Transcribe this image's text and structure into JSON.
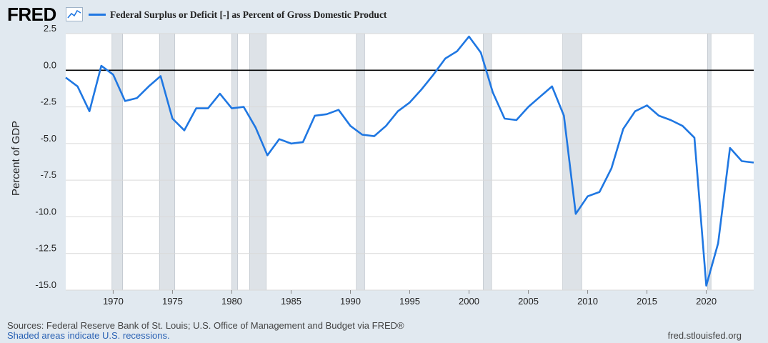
{
  "header": {
    "logo_text": "FRED",
    "logo_icon": "line-chart-icon"
  },
  "colors": {
    "series": "#1f77e2",
    "recession": "#dde2e7",
    "grid": "#d9d9d9",
    "zero_line": "#000000",
    "background": "#e1e9f0",
    "plot_background": "#ffffff"
  },
  "chart_data": {
    "type": "line",
    "title": "",
    "xlabel": "",
    "ylabel": "Percent of GDP",
    "xlim": [
      1966,
      2024
    ],
    "ylim": [
      -15.0,
      2.5
    ],
    "grid": true,
    "legend_position": "top-left",
    "y_ticks": [
      "2.5",
      "0.0",
      "-2.5",
      "-5.0",
      "-7.5",
      "-10.0",
      "-12.5",
      "-15.0"
    ],
    "x_ticks": [
      "1970",
      "1975",
      "1980",
      "1985",
      "1990",
      "1995",
      "2000",
      "2005",
      "2010",
      "2015",
      "2020"
    ],
    "recessions": [
      [
        1969.9,
        1970.8
      ],
      [
        1973.9,
        1975.2
      ],
      [
        1980.0,
        1980.5
      ],
      [
        1981.5,
        1982.9
      ],
      [
        1990.5,
        1991.2
      ],
      [
        2001.2,
        2001.9
      ],
      [
        2007.9,
        2009.5
      ],
      [
        2020.1,
        2020.4
      ]
    ],
    "series": [
      {
        "name": "Federal Surplus or Deficit [-] as Percent of Gross Domestic Product",
        "x": [
          1966,
          1967,
          1968,
          1969,
          1970,
          1971,
          1972,
          1973,
          1974,
          1975,
          1976,
          1977,
          1978,
          1979,
          1980,
          1981,
          1982,
          1983,
          1984,
          1985,
          1986,
          1987,
          1988,
          1989,
          1990,
          1991,
          1992,
          1993,
          1994,
          1995,
          1996,
          1997,
          1998,
          1999,
          2000,
          2001,
          2002,
          2003,
          2004,
          2005,
          2006,
          2007,
          2008,
          2009,
          2010,
          2011,
          2012,
          2013,
          2014,
          2015,
          2016,
          2017,
          2018,
          2019,
          2020,
          2021,
          2022,
          2023,
          2024
        ],
        "values": [
          -0.5,
          -1.1,
          -2.8,
          0.3,
          -0.3,
          -2.1,
          -1.9,
          -1.1,
          -0.4,
          -3.3,
          -4.1,
          -2.6,
          -2.6,
          -1.6,
          -2.6,
          -2.5,
          -3.9,
          -5.8,
          -4.7,
          -5.0,
          -4.9,
          -3.1,
          -3.0,
          -2.7,
          -3.8,
          -4.4,
          -4.5,
          -3.8,
          -2.8,
          -2.2,
          -1.3,
          -0.3,
          0.8,
          1.3,
          2.3,
          1.2,
          -1.5,
          -3.3,
          -3.4,
          -2.5,
          -1.8,
          -1.1,
          -3.1,
          -9.8,
          -8.6,
          -8.3,
          -6.7,
          -4.0,
          -2.8,
          -2.4,
          -3.1,
          -3.4,
          -3.8,
          -4.6,
          -14.7,
          -11.8,
          -5.3,
          -6.2,
          -6.3
        ]
      }
    ]
  },
  "footer": {
    "sources": "Sources: Federal Reserve Bank of St. Louis; U.S. Office of Management and Budget via FRED®",
    "recessions_note": "Shaded areas indicate U.S. recessions.",
    "site": "fred.stlouisfed.org"
  }
}
